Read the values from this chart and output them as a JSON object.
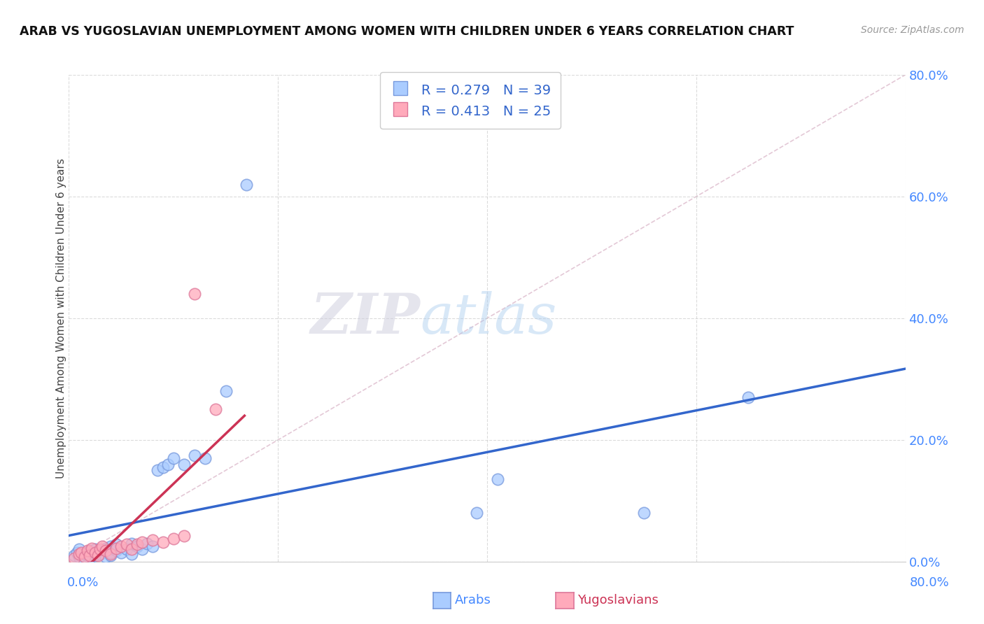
{
  "title": "ARAB VS YUGOSLAVIAN UNEMPLOYMENT AMONG WOMEN WITH CHILDREN UNDER 6 YEARS CORRELATION CHART",
  "source": "Source: ZipAtlas.com",
  "ylabel": "Unemployment Among Women with Children Under 6 years",
  "xlim": [
    0.0,
    0.8
  ],
  "ylim": [
    0.0,
    0.8
  ],
  "yticks": [
    0.0,
    0.2,
    0.4,
    0.6,
    0.8
  ],
  "yticklabels": [
    "0.0%",
    "20.0%",
    "40.0%",
    "60.0%",
    "80.0%"
  ],
  "grid_color": "#cccccc",
  "background_color": "#ffffff",
  "arab_color": "#aaccff",
  "arab_color_edge": "#7799dd",
  "yugo_color": "#ffaabb",
  "yugo_color_edge": "#dd7799",
  "trend_arab_color": "#3366cc",
  "trend_yugo_color": "#cc3355",
  "diagonal_color": "#ddbbcc",
  "legend_arab_label": "Arabs",
  "legend_yugo_label": "Yugoslavians",
  "R_arab": 0.279,
  "N_arab": 39,
  "R_yugo": 0.413,
  "N_yugo": 25,
  "watermark_zip": "ZIP",
  "watermark_atlas": "atlas",
  "arab_x": [
    0.005,
    0.008,
    0.01,
    0.01,
    0.015,
    0.02,
    0.02,
    0.025,
    0.025,
    0.03,
    0.03,
    0.035,
    0.035,
    0.04,
    0.04,
    0.04,
    0.045,
    0.045,
    0.05,
    0.055,
    0.06,
    0.06,
    0.065,
    0.07,
    0.075,
    0.08,
    0.085,
    0.09,
    0.095,
    0.1,
    0.11,
    0.12,
    0.13,
    0.15,
    0.17,
    0.39,
    0.41,
    0.55,
    0.65
  ],
  "arab_y": [
    0.01,
    0.015,
    0.008,
    0.02,
    0.012,
    0.005,
    0.018,
    0.01,
    0.02,
    0.012,
    0.018,
    0.008,
    0.022,
    0.01,
    0.015,
    0.025,
    0.018,
    0.028,
    0.015,
    0.02,
    0.012,
    0.03,
    0.025,
    0.02,
    0.03,
    0.025,
    0.15,
    0.155,
    0.16,
    0.17,
    0.16,
    0.175,
    0.17,
    0.28,
    0.62,
    0.08,
    0.135,
    0.08,
    0.27
  ],
  "yugo_x": [
    0.005,
    0.01,
    0.012,
    0.015,
    0.018,
    0.02,
    0.022,
    0.025,
    0.028,
    0.03,
    0.032,
    0.035,
    0.04,
    0.045,
    0.05,
    0.055,
    0.06,
    0.065,
    0.07,
    0.08,
    0.09,
    0.1,
    0.11,
    0.12,
    0.14
  ],
  "yugo_y": [
    0.005,
    0.012,
    0.015,
    0.008,
    0.018,
    0.01,
    0.022,
    0.015,
    0.01,
    0.02,
    0.025,
    0.018,
    0.012,
    0.022,
    0.025,
    0.028,
    0.02,
    0.028,
    0.032,
    0.035,
    0.032,
    0.038,
    0.042,
    0.44,
    0.25
  ]
}
